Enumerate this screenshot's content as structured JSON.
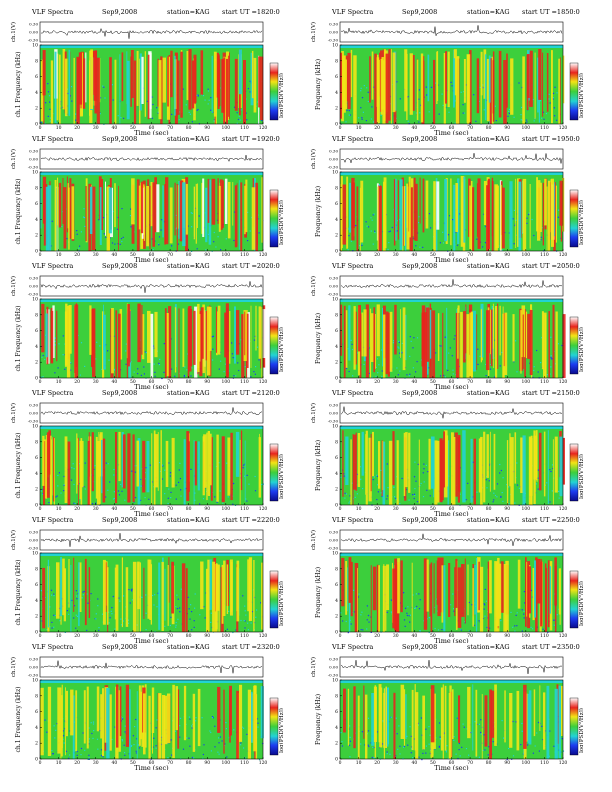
{
  "figure_title": "VLF Spectra",
  "colors": {
    "spectrum_background": "#3ccf3c",
    "band_cyan": "#22d3d3",
    "burst_yellow": "#f2e416",
    "burst_red": "#e8251d",
    "burst_white": "#ffffff",
    "noise_blue": "#1c3cf0",
    "waveform": "#000000"
  },
  "colorbar": {
    "label": "log(PSD[V²/Hz])",
    "gradient": [
      "#ffffff",
      "#e8251d",
      "#f2e416",
      "#3ccf3c",
      "#22d3d3",
      "#1c3cf0",
      "#0a0a8c"
    ]
  },
  "chart_data": [
    {
      "type": "heatmap",
      "header": {
        "title": "VLF Spectra",
        "date": "Sep9,2008",
        "station": "station=KAG",
        "start_ut": "start UT =1820:0"
      },
      "waveform_label": "ch.1(V)",
      "waveform_ticks": [
        "0.30",
        "0.00",
        "-0.30"
      ],
      "ylabel": "ch.1 Frequency (kHz)",
      "y_ticks": [
        "0",
        "2",
        "4",
        "6",
        "8",
        "10"
      ],
      "ylim": [
        0,
        10
      ],
      "xlabel": "Time (sec)",
      "x_ticks": [
        "0",
        "10",
        "20",
        "30",
        "40",
        "50",
        "60",
        "70",
        "80",
        "90",
        "100",
        "110",
        "120"
      ],
      "xlim": [
        0,
        120
      ],
      "colorbar_label": "log(PSD[V²/Hz])",
      "activity": 0.85,
      "white_bursts": true
    },
    {
      "type": "heatmap",
      "header": {
        "title": "VLF Spectra",
        "date": "Sep9,2008",
        "station": "station=KAG",
        "start_ut": "start UT =1850:0"
      },
      "waveform_label": "ch.1(V)",
      "waveform_ticks": [
        "0.30",
        "0.00",
        "-0.30"
      ],
      "ylabel": "Frequency (kHz)",
      "y_ticks": [
        "0",
        "2",
        "4",
        "6",
        "8",
        "10"
      ],
      "ylim": [
        0,
        10
      ],
      "xlabel": "Time (sec)",
      "x_ticks": [
        "0",
        "10",
        "20",
        "30",
        "40",
        "50",
        "60",
        "70",
        "80",
        "90",
        "100",
        "110",
        "120"
      ],
      "xlim": [
        0,
        120
      ],
      "colorbar_label": "log(PSD[V²/Hz])",
      "activity": 0.7,
      "white_bursts": false
    },
    {
      "type": "heatmap",
      "header": {
        "title": "VLF Spectra",
        "date": "Sep9,2008",
        "station": "station=KAG",
        "start_ut": "start UT =1920:0"
      },
      "waveform_label": "ch.1(V)",
      "waveform_ticks": [
        "0.30",
        "0.00",
        "-0.30"
      ],
      "ylabel": "ch.1 Frequency (kHz)",
      "y_ticks": [
        "0",
        "2",
        "4",
        "6",
        "8",
        "10"
      ],
      "ylim": [
        0,
        10
      ],
      "xlabel": "Time (sec)",
      "x_ticks": [
        "0",
        "10",
        "20",
        "30",
        "40",
        "50",
        "60",
        "70",
        "80",
        "90",
        "100",
        "110",
        "120"
      ],
      "xlim": [
        0,
        120
      ],
      "colorbar_label": "log(PSD[V²/Hz])",
      "activity": 0.9,
      "white_bursts": true
    },
    {
      "type": "heatmap",
      "header": {
        "title": "VLF Spectra",
        "date": "Sep9,2008",
        "station": "station=KAG",
        "start_ut": "start UT =1950:0"
      },
      "waveform_label": "ch.1(V)",
      "waveform_ticks": [
        "0.30",
        "0.00",
        "-0.30"
      ],
      "ylabel": "Frequency (kHz)",
      "y_ticks": [
        "0",
        "2",
        "4",
        "6",
        "8",
        "10"
      ],
      "ylim": [
        0,
        10
      ],
      "xlabel": "Time (sec)",
      "x_ticks": [
        "0",
        "10",
        "20",
        "30",
        "40",
        "50",
        "60",
        "70",
        "80",
        "90",
        "100",
        "110",
        "120"
      ],
      "xlim": [
        0,
        120
      ],
      "colorbar_label": "log(PSD[V²/Hz])",
      "activity": 0.85,
      "white_bursts": true
    },
    {
      "type": "heatmap",
      "header": {
        "title": "VLF Spectra",
        "date": "Sep9,2008",
        "station": "station=KAG",
        "start_ut": "start UT =2020:0"
      },
      "waveform_label": "ch.1(V)",
      "waveform_ticks": [
        "0.30",
        "0.00",
        "-0.30"
      ],
      "ylabel": "ch.1 Frequency (kHz)",
      "y_ticks": [
        "0",
        "2",
        "4",
        "6",
        "8",
        "10"
      ],
      "ylim": [
        0,
        10
      ],
      "xlabel": "Time (sec)",
      "x_ticks": [
        "0",
        "10",
        "20",
        "30",
        "40",
        "50",
        "60",
        "70",
        "80",
        "90",
        "100",
        "110",
        "120"
      ],
      "xlim": [
        0,
        120
      ],
      "colorbar_label": "log(PSD[V²/Hz])",
      "activity": 0.8,
      "white_bursts": true
    },
    {
      "type": "heatmap",
      "header": {
        "title": "VLF Spectra",
        "date": "Sep9,2008",
        "station": "station=KAG",
        "start_ut": "start UT =2050:0"
      },
      "waveform_label": "ch.1(V)",
      "waveform_ticks": [
        "0.30",
        "0.00",
        "-0.30"
      ],
      "ylabel": "Frequency (kHz)",
      "y_ticks": [
        "0",
        "2",
        "4",
        "6",
        "8",
        "10"
      ],
      "ylim": [
        0,
        10
      ],
      "xlabel": "Time (sec)",
      "x_ticks": [
        "0",
        "10",
        "20",
        "30",
        "40",
        "50",
        "60",
        "70",
        "80",
        "90",
        "100",
        "110",
        "120"
      ],
      "xlim": [
        0,
        120
      ],
      "colorbar_label": "log(PSD[V²/Hz])",
      "activity": 0.75,
      "white_bursts": false
    },
    {
      "type": "heatmap",
      "header": {
        "title": "VLF Spectra",
        "date": "Sep9,2008",
        "station": "station=KAG",
        "start_ut": "start UT =2120:0"
      },
      "waveform_label": "ch.1(V)",
      "waveform_ticks": [
        "0.30",
        "0.00",
        "-0.30"
      ],
      "ylabel": "ch.1 Frequency (kHz)",
      "y_ticks": [
        "0",
        "2",
        "4",
        "6",
        "8",
        "10"
      ],
      "ylim": [
        0,
        10
      ],
      "xlabel": "Time (sec)",
      "x_ticks": [
        "0",
        "10",
        "20",
        "30",
        "40",
        "50",
        "60",
        "70",
        "80",
        "90",
        "100",
        "110",
        "120"
      ],
      "xlim": [
        0,
        120
      ],
      "colorbar_label": "log(PSD[V²/Hz])",
      "activity": 0.45,
      "white_bursts": false
    },
    {
      "type": "heatmap",
      "header": {
        "title": "VLF Spectra",
        "date": "Sep9,2008",
        "station": "station=KAG",
        "start_ut": "start UT =2150:0"
      },
      "waveform_label": "ch.1(V)",
      "waveform_ticks": [
        "0.30",
        "0.00",
        "-0.30"
      ],
      "ylabel": "Frequency (kHz)",
      "y_ticks": [
        "0",
        "2",
        "4",
        "6",
        "8",
        "10"
      ],
      "ylim": [
        0,
        10
      ],
      "xlabel": "Time (sec)",
      "x_ticks": [
        "0",
        "10",
        "20",
        "30",
        "40",
        "50",
        "60",
        "70",
        "80",
        "90",
        "100",
        "110",
        "120"
      ],
      "xlim": [
        0,
        120
      ],
      "colorbar_label": "log(PSD[V²/Hz])",
      "activity": 0.45,
      "white_bursts": false
    },
    {
      "type": "heatmap",
      "header": {
        "title": "VLF Spectra",
        "date": "Sep9,2008",
        "station": "station=KAG",
        "start_ut": "start UT =2220:0"
      },
      "waveform_label": "ch.1(V)",
      "waveform_ticks": [
        "0.30",
        "0.00",
        "-0.30"
      ],
      "ylabel": "ch.1 Frequency (kHz)",
      "y_ticks": [
        "0",
        "2",
        "4",
        "6",
        "8",
        "10"
      ],
      "ylim": [
        0,
        10
      ],
      "xlabel": "Time (sec)",
      "x_ticks": [
        "0",
        "10",
        "20",
        "30",
        "40",
        "50",
        "60",
        "70",
        "80",
        "90",
        "100",
        "110",
        "120"
      ],
      "xlim": [
        0,
        120
      ],
      "colorbar_label": "log(PSD[V²/Hz])",
      "activity": 0.4,
      "white_bursts": false
    },
    {
      "type": "heatmap",
      "header": {
        "title": "VLF Spectra",
        "date": "Sep9,2008",
        "station": "station=KAG",
        "start_ut": "start UT =2250:0"
      },
      "waveform_label": "ch.1(V)",
      "waveform_ticks": [
        "0.30",
        "0.00",
        "-0.30"
      ],
      "ylabel": "Frequency (kHz)",
      "y_ticks": [
        "0",
        "2",
        "4",
        "6",
        "8",
        "10"
      ],
      "ylim": [
        0,
        10
      ],
      "xlabel": "Time (sec)",
      "x_ticks": [
        "0",
        "10",
        "20",
        "30",
        "40",
        "50",
        "60",
        "70",
        "80",
        "90",
        "100",
        "110",
        "120"
      ],
      "xlim": [
        0,
        120
      ],
      "colorbar_label": "log(PSD[V²/Hz])",
      "activity": 0.7,
      "white_bursts": false
    },
    {
      "type": "heatmap",
      "header": {
        "title": "VLF Spectra",
        "date": "Sep9,2008",
        "station": "station=KAG",
        "start_ut": "start UT =2320:0"
      },
      "waveform_label": "ch.1(V)",
      "waveform_ticks": [
        "0.30",
        "0.00",
        "-0.30"
      ],
      "ylabel": "ch.1 Frequency (kHz)",
      "y_ticks": [
        "0",
        "2",
        "4",
        "6",
        "8",
        "10"
      ],
      "ylim": [
        0,
        10
      ],
      "xlabel": "Time (sec)",
      "x_ticks": [
        "0",
        "10",
        "20",
        "30",
        "40",
        "50",
        "60",
        "70",
        "80",
        "90",
        "100",
        "110",
        "120"
      ],
      "xlim": [
        0,
        120
      ],
      "colorbar_label": "log(PSD[V²/Hz])",
      "activity": 0.35,
      "white_bursts": false
    },
    {
      "type": "heatmap",
      "header": {
        "title": "VLF Spectra",
        "date": "Sep9,2008",
        "station": "station=KAG",
        "start_ut": "start UT =2350:0"
      },
      "waveform_label": "ch.1(V)",
      "waveform_ticks": [
        "0.30",
        "0.00",
        "-0.30"
      ],
      "ylabel": "Frequency (kHz)",
      "y_ticks": [
        "0",
        "2",
        "4",
        "6",
        "8",
        "10"
      ],
      "ylim": [
        0,
        10
      ],
      "xlabel": "Time (sec)",
      "x_ticks": [
        "0",
        "10",
        "20",
        "30",
        "40",
        "50",
        "60",
        "70",
        "80",
        "90",
        "100",
        "110",
        "120"
      ],
      "xlim": [
        0,
        120
      ],
      "colorbar_label": "log(PSD[V²/Hz])",
      "activity": 0.3,
      "white_bursts": false
    }
  ]
}
